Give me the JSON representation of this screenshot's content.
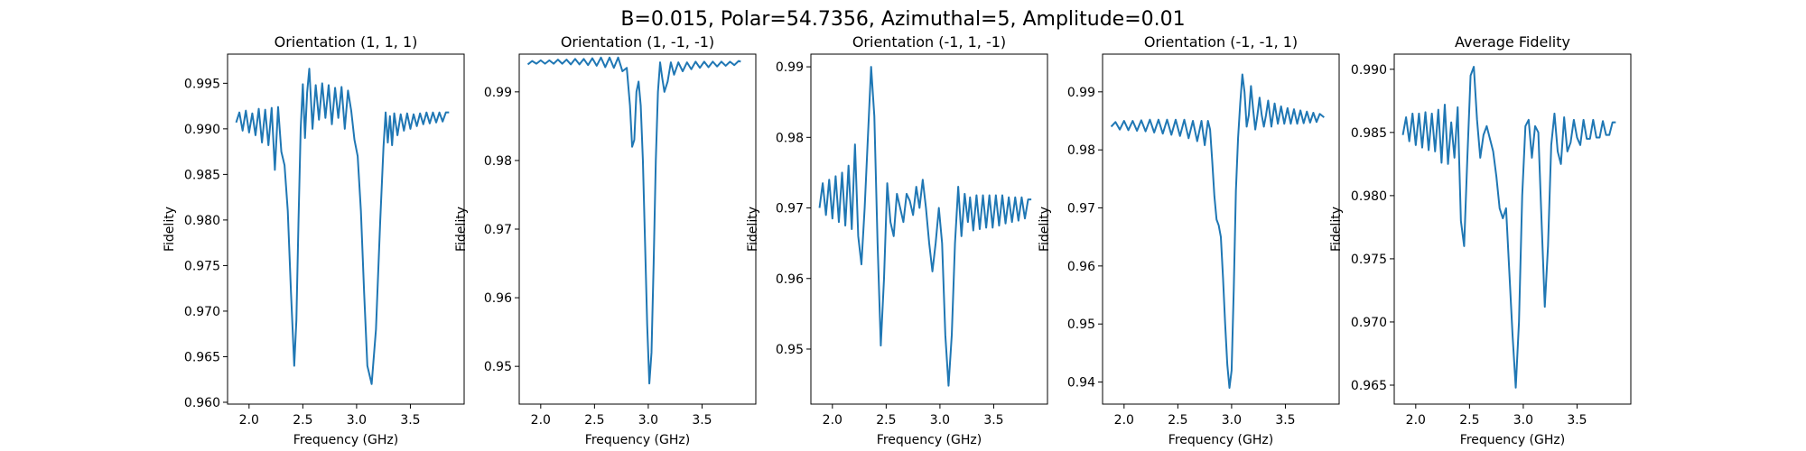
{
  "figure": {
    "suptitle": "B=0.015, Polar=54.7356, Azimuthal=5, Amplitude=0.01"
  },
  "colors": {
    "line": "#1f77b4"
  },
  "chart_data": [
    {
      "type": "line",
      "title": "Orientation (1, 1, 1)",
      "xlabel": "Frequency (GHz)",
      "ylabel": "Fidelity",
      "xlim": [
        1.8,
        4.0
      ],
      "ylim": [
        0.9598,
        0.9982
      ],
      "xticks": [
        2.0,
        2.5,
        3.0,
        3.5
      ],
      "xtick_labels": [
        "2.0",
        "2.5",
        "3.0",
        "3.5"
      ],
      "yticks": [
        0.96,
        0.965,
        0.97,
        0.975,
        0.98,
        0.985,
        0.99,
        0.995
      ],
      "ytick_labels": [
        "0.960",
        "0.965",
        "0.970",
        "0.975",
        "0.980",
        "0.985",
        "0.990",
        "0.995"
      ],
      "series": [
        {
          "x": [
            1.88,
            1.91,
            1.94,
            1.97,
            2.0,
            2.03,
            2.06,
            2.09,
            2.12,
            2.15,
            2.18,
            2.21,
            2.24,
            2.27,
            2.3,
            2.33,
            2.36,
            2.39,
            2.42,
            2.44,
            2.46,
            2.48,
            2.5,
            2.52,
            2.54,
            2.56,
            2.59,
            2.62,
            2.65,
            2.68,
            2.71,
            2.74,
            2.77,
            2.8,
            2.83,
            2.86,
            2.89,
            2.92,
            2.95,
            2.98,
            3.01,
            3.04,
            3.07,
            3.1,
            3.14,
            3.18,
            3.22,
            3.25,
            3.27,
            3.29,
            3.31,
            3.33,
            3.35,
            3.38,
            3.41,
            3.44,
            3.47,
            3.5,
            3.53,
            3.56,
            3.59,
            3.62,
            3.65,
            3.68,
            3.71,
            3.74,
            3.77,
            3.8,
            3.83,
            3.86
          ],
          "y": [
            0.9907,
            0.9918,
            0.9898,
            0.992,
            0.9896,
            0.9917,
            0.9893,
            0.9922,
            0.9885,
            0.9921,
            0.9882,
            0.9923,
            0.9855,
            0.9924,
            0.9875,
            0.986,
            0.981,
            0.972,
            0.964,
            0.969,
            0.98,
            0.99,
            0.9949,
            0.989,
            0.994,
            0.9966,
            0.99,
            0.9948,
            0.991,
            0.995,
            0.9912,
            0.9948,
            0.9905,
            0.9945,
            0.9912,
            0.9946,
            0.99,
            0.9942,
            0.992,
            0.9888,
            0.987,
            0.981,
            0.972,
            0.964,
            0.962,
            0.968,
            0.98,
            0.988,
            0.9918,
            0.9885,
            0.9914,
            0.9882,
            0.9917,
            0.9893,
            0.9916,
            0.9898,
            0.9917,
            0.99,
            0.9916,
            0.9903,
            0.9917,
            0.9905,
            0.9918,
            0.9906,
            0.9918,
            0.9907,
            0.9918,
            0.9908,
            0.9918,
            0.9918
          ]
        }
      ]
    },
    {
      "type": "line",
      "title": "Orientation (1, -1, -1)",
      "xlabel": "Frequency (GHz)",
      "ylabel": "Fidelity",
      "xlim": [
        1.8,
        4.0
      ],
      "ylim": [
        0.9445,
        0.9955
      ],
      "xticks": [
        2.0,
        2.5,
        3.0,
        3.5
      ],
      "xtick_labels": [
        "2.0",
        "2.5",
        "3.0",
        "3.5"
      ],
      "yticks": [
        0.95,
        0.96,
        0.97,
        0.98,
        0.99
      ],
      "ytick_labels": [
        "0.95",
        "0.96",
        "0.97",
        "0.98",
        "0.99"
      ],
      "series": [
        {
          "x": [
            1.88,
            1.92,
            1.96,
            2.0,
            2.04,
            2.08,
            2.12,
            2.16,
            2.2,
            2.24,
            2.28,
            2.32,
            2.36,
            2.4,
            2.44,
            2.48,
            2.52,
            2.56,
            2.6,
            2.64,
            2.68,
            2.72,
            2.76,
            2.8,
            2.83,
            2.85,
            2.87,
            2.89,
            2.91,
            2.93,
            2.95,
            2.97,
            2.99,
            3.01,
            3.03,
            3.05,
            3.07,
            3.09,
            3.11,
            3.13,
            3.15,
            3.18,
            3.21,
            3.24,
            3.28,
            3.32,
            3.36,
            3.4,
            3.44,
            3.48,
            3.52,
            3.56,
            3.6,
            3.64,
            3.68,
            3.72,
            3.76,
            3.8,
            3.84,
            3.86
          ],
          "y": [
            0.994,
            0.9945,
            0.9941,
            0.9946,
            0.9941,
            0.9946,
            0.9941,
            0.9947,
            0.9941,
            0.9947,
            0.994,
            0.9948,
            0.994,
            0.9948,
            0.9939,
            0.9949,
            0.9938,
            0.995,
            0.9936,
            0.995,
            0.9935,
            0.995,
            0.993,
            0.9935,
            0.988,
            0.982,
            0.983,
            0.99,
            0.9915,
            0.988,
            0.98,
            0.968,
            0.956,
            0.9475,
            0.952,
            0.965,
            0.98,
            0.99,
            0.9943,
            0.992,
            0.99,
            0.9915,
            0.9943,
            0.9925,
            0.9943,
            0.993,
            0.9943,
            0.9933,
            0.9944,
            0.9935,
            0.9944,
            0.9936,
            0.9944,
            0.9937,
            0.9944,
            0.9938,
            0.9944,
            0.9939,
            0.9945,
            0.9944
          ]
        }
      ]
    },
    {
      "type": "line",
      "title": "Orientation (-1, 1, -1)",
      "xlabel": "Frequency (GHz)",
      "ylabel": "Fidelity",
      "xlim": [
        1.8,
        4.0
      ],
      "ylim": [
        0.9422,
        0.9918
      ],
      "xticks": [
        2.0,
        2.5,
        3.0,
        3.5
      ],
      "xtick_labels": [
        "2.0",
        "2.5",
        "3.0",
        "3.5"
      ],
      "yticks": [
        0.95,
        0.96,
        0.97,
        0.98,
        0.99
      ],
      "ytick_labels": [
        "0.95",
        "0.96",
        "0.97",
        "0.98",
        "0.99"
      ],
      "series": [
        {
          "x": [
            1.88,
            1.91,
            1.94,
            1.97,
            2.0,
            2.03,
            2.06,
            2.09,
            2.12,
            2.15,
            2.18,
            2.21,
            2.24,
            2.27,
            2.3,
            2.33,
            2.36,
            2.39,
            2.42,
            2.45,
            2.48,
            2.51,
            2.54,
            2.57,
            2.6,
            2.63,
            2.66,
            2.69,
            2.72,
            2.75,
            2.78,
            2.81,
            2.84,
            2.87,
            2.9,
            2.93,
            2.96,
            2.99,
            3.02,
            3.05,
            3.08,
            3.11,
            3.14,
            3.17,
            3.2,
            3.23,
            3.26,
            3.28,
            3.31,
            3.34,
            3.37,
            3.4,
            3.43,
            3.46,
            3.49,
            3.52,
            3.55,
            3.58,
            3.61,
            3.64,
            3.67,
            3.7,
            3.73,
            3.76,
            3.79,
            3.82,
            3.85
          ],
          "y": [
            0.97,
            0.9735,
            0.969,
            0.974,
            0.9685,
            0.9745,
            0.968,
            0.975,
            0.9675,
            0.976,
            0.967,
            0.979,
            0.966,
            0.962,
            0.97,
            0.98,
            0.99,
            0.983,
            0.965,
            0.9505,
            0.96,
            0.9735,
            0.968,
            0.966,
            0.972,
            0.97,
            0.968,
            0.972,
            0.971,
            0.969,
            0.973,
            0.97,
            0.974,
            0.97,
            0.965,
            0.961,
            0.965,
            0.97,
            0.965,
            0.952,
            0.9448,
            0.952,
            0.965,
            0.973,
            0.966,
            0.972,
            0.968,
            0.9715,
            0.9668,
            0.9718,
            0.967,
            0.9718,
            0.9672,
            0.9718,
            0.9672,
            0.9718,
            0.9675,
            0.9718,
            0.9678,
            0.9715,
            0.968,
            0.9715,
            0.9682,
            0.9715,
            0.9685,
            0.9712,
            0.9712
          ]
        }
      ]
    },
    {
      "type": "line",
      "title": "Orientation (-1, -1, 1)",
      "xlabel": "Frequency (GHz)",
      "ylabel": "Fidelity",
      "xlim": [
        1.8,
        4.0
      ],
      "ylim": [
        0.9362,
        0.9965
      ],
      "xticks": [
        2.0,
        2.5,
        3.0,
        3.5
      ],
      "xtick_labels": [
        "2.0",
        "2.5",
        "3.0",
        "3.5"
      ],
      "yticks": [
        0.94,
        0.95,
        0.96,
        0.97,
        0.98,
        0.99
      ],
      "ytick_labels": [
        "0.94",
        "0.95",
        "0.96",
        "0.97",
        "0.98",
        "0.99"
      ],
      "series": [
        {
          "x": [
            1.88,
            1.92,
            1.96,
            2.0,
            2.04,
            2.08,
            2.12,
            2.16,
            2.2,
            2.24,
            2.28,
            2.32,
            2.36,
            2.4,
            2.44,
            2.48,
            2.52,
            2.56,
            2.6,
            2.64,
            2.68,
            2.72,
            2.75,
            2.78,
            2.8,
            2.82,
            2.84,
            2.86,
            2.88,
            2.9,
            2.92,
            2.94,
            2.96,
            2.98,
            3.0,
            3.02,
            3.04,
            3.06,
            3.08,
            3.1,
            3.12,
            3.14,
            3.16,
            3.18,
            3.2,
            3.22,
            3.24,
            3.26,
            3.28,
            3.3,
            3.32,
            3.34,
            3.37,
            3.4,
            3.43,
            3.46,
            3.49,
            3.52,
            3.55,
            3.58,
            3.61,
            3.64,
            3.67,
            3.7,
            3.73,
            3.76,
            3.79,
            3.82,
            3.86
          ],
          "y": [
            0.984,
            0.9848,
            0.9835,
            0.985,
            0.9834,
            0.985,
            0.9833,
            0.9851,
            0.9832,
            0.9852,
            0.983,
            0.9852,
            0.9828,
            0.9852,
            0.9826,
            0.9852,
            0.9824,
            0.9852,
            0.982,
            0.985,
            0.9815,
            0.985,
            0.9808,
            0.985,
            0.9835,
            0.978,
            0.972,
            0.968,
            0.967,
            0.965,
            0.958,
            0.95,
            0.943,
            0.939,
            0.942,
            0.956,
            0.973,
            0.982,
            0.988,
            0.993,
            0.99,
            0.984,
            0.986,
            0.991,
            0.987,
            0.9835,
            0.986,
            0.989,
            0.986,
            0.984,
            0.986,
            0.9885,
            0.984,
            0.988,
            0.9845,
            0.9875,
            0.9845,
            0.9872,
            0.9845,
            0.987,
            0.9845,
            0.9868,
            0.9846,
            0.9866,
            0.9847,
            0.9864,
            0.9848,
            0.9862,
            0.9856
          ]
        }
      ]
    },
    {
      "type": "line",
      "title": "Average Fidelity",
      "xlabel": "Frequency (GHz)",
      "ylabel": "Fidelity",
      "xlim": [
        1.8,
        4.0
      ],
      "ylim": [
        0.9635,
        0.9912
      ],
      "xticks": [
        2.0,
        2.5,
        3.0,
        3.5
      ],
      "xtick_labels": [
        "2.0",
        "2.5",
        "3.0",
        "3.5"
      ],
      "yticks": [
        0.965,
        0.97,
        0.975,
        0.98,
        0.985,
        0.99
      ],
      "ytick_labels": [
        "0.965",
        "0.970",
        "0.975",
        "0.980",
        "0.985",
        "0.990"
      ],
      "series": [
        {
          "x": [
            1.88,
            1.91,
            1.94,
            1.97,
            2.0,
            2.03,
            2.06,
            2.09,
            2.12,
            2.15,
            2.18,
            2.21,
            2.24,
            2.27,
            2.3,
            2.33,
            2.36,
            2.39,
            2.42,
            2.45,
            2.48,
            2.51,
            2.54,
            2.57,
            2.6,
            2.63,
            2.66,
            2.69,
            2.72,
            2.75,
            2.78,
            2.81,
            2.84,
            2.87,
            2.9,
            2.93,
            2.96,
            2.99,
            3.02,
            3.05,
            3.08,
            3.11,
            3.14,
            3.17,
            3.2,
            3.23,
            3.26,
            3.29,
            3.32,
            3.35,
            3.38,
            3.41,
            3.44,
            3.47,
            3.5,
            3.53,
            3.56,
            3.59,
            3.62,
            3.65,
            3.68,
            3.71,
            3.74,
            3.77,
            3.8,
            3.83,
            3.86
          ],
          "y": [
            0.9848,
            0.9862,
            0.9843,
            0.9865,
            0.984,
            0.9865,
            0.9838,
            0.9866,
            0.9836,
            0.9865,
            0.9835,
            0.9868,
            0.9826,
            0.9872,
            0.9825,
            0.9858,
            0.983,
            0.987,
            0.978,
            0.976,
            0.983,
            0.9895,
            0.9902,
            0.986,
            0.983,
            0.9848,
            0.9855,
            0.9845,
            0.9835,
            0.9815,
            0.979,
            0.9782,
            0.979,
            0.974,
            0.969,
            0.9648,
            0.97,
            0.98,
            0.9855,
            0.986,
            0.983,
            0.9855,
            0.985,
            0.978,
            0.9712,
            0.976,
            0.984,
            0.9865,
            0.9835,
            0.9825,
            0.9862,
            0.9835,
            0.9842,
            0.986,
            0.9846,
            0.984,
            0.986,
            0.9845,
            0.9845,
            0.986,
            0.9846,
            0.9846,
            0.9859,
            0.9848,
            0.9848,
            0.9858,
            0.9858
          ]
        }
      ]
    }
  ]
}
